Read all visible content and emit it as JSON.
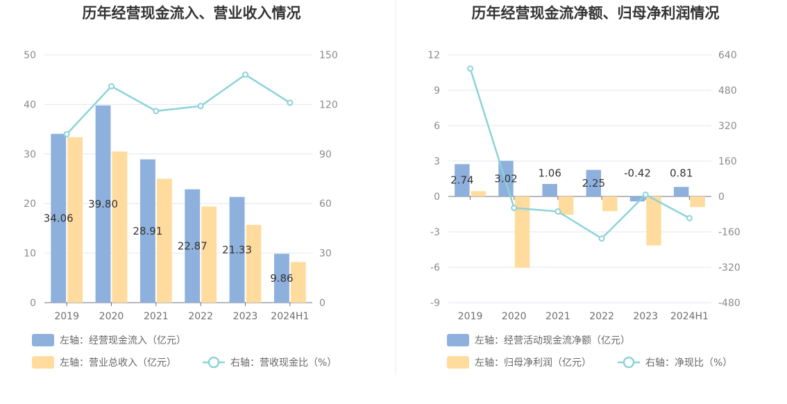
{
  "colors": {
    "bar1": "#8eb0dc",
    "bar2": "#ffdc9e",
    "line": "#8bd3d9",
    "grid": "#e3e6f0",
    "divider": "#eeeeee"
  },
  "chart_data": [
    {
      "type": "bar",
      "title": "历年经营现金流入、营业收入情况",
      "categories": [
        "2019",
        "2020",
        "2021",
        "2022",
        "2023",
        "2024H1"
      ],
      "left_axis": {
        "ticks": [
          "0",
          "10",
          "20",
          "30",
          "40",
          "50"
        ],
        "ylim": [
          0,
          50
        ]
      },
      "right_axis": {
        "ticks": [
          "0",
          "30",
          "60",
          "90",
          "120",
          "150"
        ],
        "ylim": [
          0,
          150
        ]
      },
      "series": [
        {
          "name": "左轴：经营现金流入（亿元）",
          "axis": "left",
          "kind": "bar",
          "values": [
            34.06,
            39.8,
            28.91,
            22.87,
            21.33,
            9.86
          ],
          "labels": [
            "34.06",
            "39.80",
            "28.91",
            "22.87",
            "21.33",
            "9.86"
          ]
        },
        {
          "name": "左轴：营业总收入（亿元）",
          "axis": "left",
          "kind": "bar",
          "values": [
            33.4,
            30.5,
            25.0,
            19.4,
            15.7,
            8.2
          ]
        },
        {
          "name": "右轴：营收现金比（%）",
          "axis": "right",
          "kind": "line",
          "values": [
            102,
            131,
            116,
            119,
            138,
            121
          ]
        }
      ],
      "grid": true,
      "legend_position": "bottom"
    },
    {
      "type": "bar",
      "title": "历年经营现金流净额、归母净利润情况",
      "categories": [
        "2019",
        "2020",
        "2021",
        "2022",
        "2023",
        "2024H1"
      ],
      "left_axis": {
        "ticks": [
          "-9",
          "-6",
          "-3",
          "0",
          "3",
          "6",
          "9",
          "12"
        ],
        "ylim": [
          -9,
          12
        ]
      },
      "right_axis": {
        "ticks": [
          "-480",
          "-320",
          "-160",
          "0",
          "160",
          "320",
          "480",
          "640"
        ],
        "ylim": [
          -480,
          640
        ]
      },
      "series": [
        {
          "name": "左轴：经营活动现金流净额（亿元）",
          "axis": "left",
          "kind": "bar",
          "values": [
            2.74,
            3.02,
            1.06,
            2.25,
            -0.42,
            0.81
          ],
          "labels": [
            "2.74",
            "3.02",
            "1.06",
            "2.25",
            "-0.42",
            "0.81"
          ]
        },
        {
          "name": "左轴：归母净利润（亿元）",
          "axis": "left",
          "kind": "bar",
          "values": [
            0.45,
            -6.05,
            -1.55,
            -1.25,
            -4.15,
            -0.9
          ]
        },
        {
          "name": "右轴：净现比（%）",
          "axis": "right",
          "kind": "line",
          "values": [
            578,
            -52,
            -68,
            -190,
            8,
            -98
          ]
        }
      ],
      "grid": true,
      "legend_position": "bottom"
    }
  ]
}
